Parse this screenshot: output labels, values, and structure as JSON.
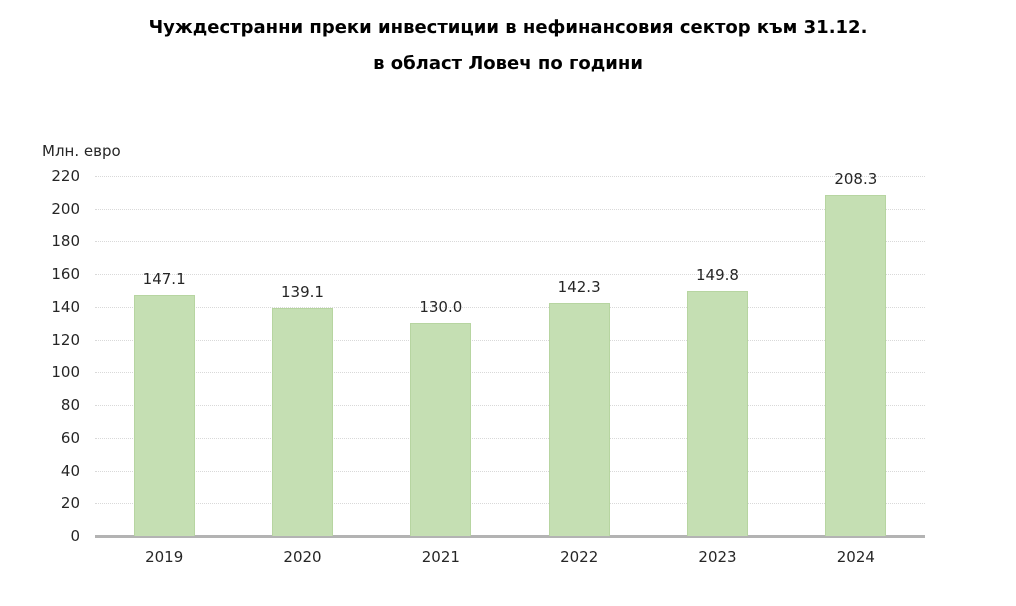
{
  "chart": {
    "title_line1": "Чуждестранни преки инвестиции в нефинансовия сектор към 31.12.",
    "title_line2": "в област Ловеч по години",
    "unit_label": "Млн. евро"
  },
  "chart_data": {
    "type": "bar",
    "title": "Чуждестранни преки инвестиции в нефинансовия сектор към 31.12. в област Ловеч по години",
    "categories": [
      "2019",
      "2020",
      "2021",
      "2022",
      "2023",
      "2024"
    ],
    "values": [
      147.1,
      139.1,
      130.0,
      142.3,
      149.8,
      208.3
    ],
    "data_labels": [
      "147.1",
      "139.1",
      "130.0",
      "142.3",
      "149.8",
      "208.3"
    ],
    "xlabel": "",
    "ylabel": "Млн. евро",
    "ylim": [
      0,
      220
    ],
    "ytick_step": 20,
    "ytick_labels": [
      "0",
      "20",
      "40",
      "60",
      "80",
      "100",
      "120",
      "140",
      "160",
      "180",
      "200",
      "220"
    ],
    "grid": "horizontal-dotted",
    "legend": "none",
    "colors": {
      "bar": "#c5dfb3",
      "bar_border": "#b7d5a1",
      "gridline": "#d9d9d9",
      "axis_line": "#b3b3b3",
      "text": "#262626",
      "title": "#000000",
      "background": "#ffffff"
    }
  }
}
